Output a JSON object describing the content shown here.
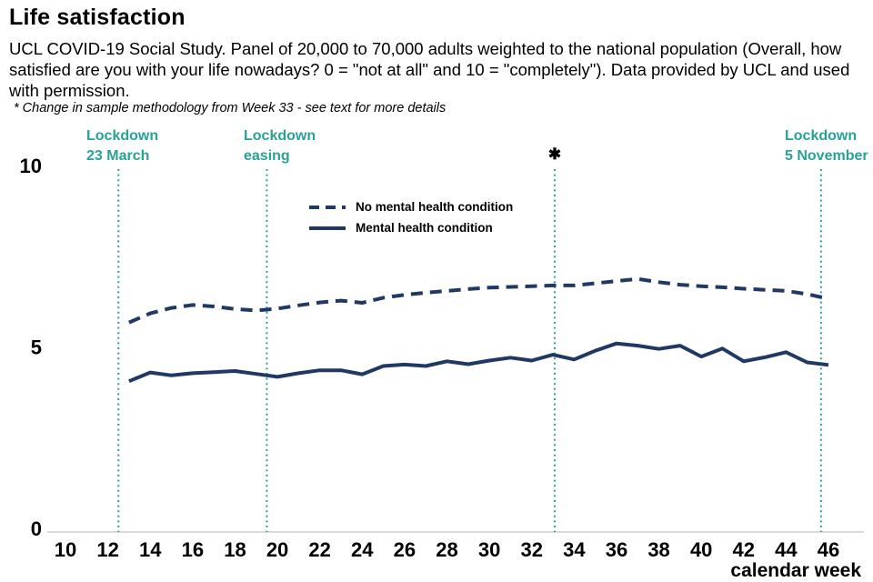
{
  "header": {
    "title": "Life satisfaction",
    "subtitle": "UCL COVID-19 Social Study. Panel of 20,000 to 70,000 adults weighted to the national population (Overall, how satisfied are you with your life nowadays? 0 = \"not at all\" and 10 = \"completely\"). Data provided by UCL and used with permission.",
    "footnote": "* Change in sample methodology from Week 33 - see text for more details"
  },
  "colors": {
    "series": "#1f3864",
    "annotation": "#28a197",
    "axis_line": "#d9d9d9",
    "text": "#000000"
  },
  "legend": {
    "items": [
      {
        "label": "No mental health condition",
        "style": "dashed"
      },
      {
        "label": "Mental health condition",
        "style": "solid"
      }
    ]
  },
  "annotations": {
    "lockdowns": [
      {
        "line1": "Lockdown",
        "line2": "23 March",
        "line_week": 12.5
      },
      {
        "line1": "Lockdown",
        "line2": "easing",
        "line_week": 19.5
      },
      {
        "line1": "Lockdown",
        "line2": "5 November",
        "line_week": 45.65
      }
    ],
    "methodology_marker": {
      "symbol": "✱",
      "line_week": 33.08
    }
  },
  "chart_data": {
    "type": "line",
    "title": "Life satisfaction",
    "xlabel": "calendar week",
    "ylabel": "",
    "ylim": [
      0,
      10
    ],
    "y_ticks": [
      0,
      5,
      10
    ],
    "x_ticks": [
      10,
      12,
      14,
      16,
      18,
      20,
      22,
      24,
      26,
      28,
      30,
      32,
      34,
      36,
      38,
      40,
      42,
      44,
      46
    ],
    "grid": false,
    "legend_position": "upper-center",
    "x": [
      13,
      14,
      15,
      16,
      17,
      18,
      19,
      20,
      21,
      22,
      23,
      24,
      25,
      26,
      27,
      28,
      29,
      30,
      31,
      32,
      33,
      34,
      35,
      36,
      37,
      38,
      39,
      40,
      41,
      42,
      43,
      44,
      45,
      46
    ],
    "series": [
      {
        "name": "No mental health condition",
        "style": "dashed",
        "values": [
          5.7,
          5.95,
          6.1,
          6.18,
          6.14,
          6.07,
          6.03,
          6.08,
          6.17,
          6.25,
          6.3,
          6.24,
          6.38,
          6.46,
          6.52,
          6.57,
          6.62,
          6.66,
          6.68,
          6.7,
          6.72,
          6.72,
          6.78,
          6.84,
          6.9,
          6.81,
          6.74,
          6.7,
          6.67,
          6.63,
          6.6,
          6.57,
          6.48,
          6.35
        ]
      },
      {
        "name": "Mental health condition",
        "style": "solid",
        "values": [
          4.08,
          4.32,
          4.24,
          4.3,
          4.33,
          4.36,
          4.28,
          4.2,
          4.3,
          4.38,
          4.38,
          4.27,
          4.5,
          4.54,
          4.5,
          4.63,
          4.55,
          4.65,
          4.73,
          4.65,
          4.81,
          4.68,
          4.92,
          5.12,
          5.06,
          4.97,
          5.06,
          4.76,
          4.98,
          4.63,
          4.74,
          4.88,
          4.6,
          4.53
        ]
      }
    ]
  }
}
